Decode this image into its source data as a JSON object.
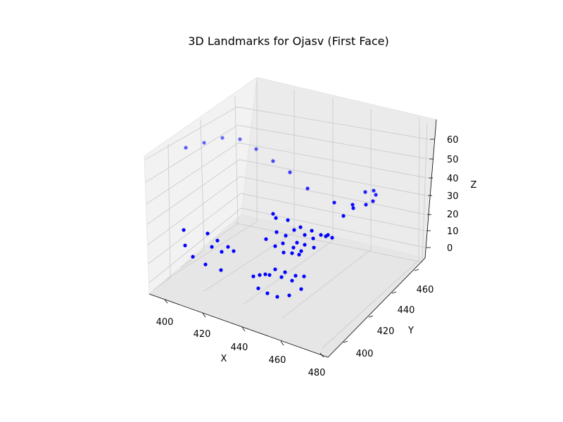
{
  "chart_data": {
    "type": "scatter",
    "projection": "3d",
    "title": "3D Landmarks for Ojasv (First Face)",
    "xlabel": "X",
    "ylabel": "Y",
    "zlabel": "Z",
    "xticks": [
      "400",
      "420",
      "440",
      "460",
      "480"
    ],
    "yticks": [
      "400",
      "420",
      "440",
      "460"
    ],
    "zticks": [
      "0",
      "10",
      "20",
      "30",
      "40",
      "50",
      "60"
    ],
    "grid": true,
    "marker_color": "#0000ff",
    "points": [
      [
        264,
        210
      ],
      [
        290,
        203
      ],
      [
        316,
        196
      ],
      [
        341,
        198
      ],
      [
        364,
        212
      ],
      [
        388,
        229
      ],
      [
        412,
        245
      ],
      [
        437,
        268
      ],
      [
        475,
        288
      ],
      [
        502,
        296
      ],
      [
        520,
        291
      ],
      [
        530,
        286
      ],
      [
        501,
        291
      ],
      [
        488,
        307
      ],
      [
        519,
        273
      ],
      [
        534,
        277
      ],
      [
        531,
        271
      ],
      [
        261,
        327
      ],
      [
        263,
        349
      ],
      [
        274,
        365
      ],
      [
        292,
        376
      ],
      [
        314,
        384
      ],
      [
        295,
        332
      ],
      [
        309,
        342
      ],
      [
        301,
        351
      ],
      [
        315,
        358
      ],
      [
        324,
        351
      ],
      [
        332,
        357
      ],
      [
        388,
        304
      ],
      [
        392,
        310
      ],
      [
        409,
        313
      ],
      [
        393,
        330
      ],
      [
        378,
        340
      ],
      [
        391,
        350
      ],
      [
        402,
        346
      ],
      [
        406,
        335
      ],
      [
        418,
        327
      ],
      [
        427,
        323
      ],
      [
        433,
        334
      ],
      [
        443,
        328
      ],
      [
        445,
        339
      ],
      [
        456,
        334
      ],
      [
        463,
        336
      ],
      [
        466,
        334
      ],
      [
        472,
        338
      ],
      [
        403,
        359
      ],
      [
        415,
        360
      ],
      [
        417,
        352
      ],
      [
        422,
        345
      ],
      [
        428,
        357
      ],
      [
        425,
        362
      ],
      [
        433,
        348
      ],
      [
        446,
        352
      ],
      [
        360,
        393
      ],
      [
        369,
        391
      ],
      [
        377,
        390
      ],
      [
        383,
        391
      ],
      [
        391,
        383
      ],
      [
        400,
        394
      ],
      [
        405,
        387
      ],
      [
        415,
        399
      ],
      [
        420,
        392
      ],
      [
        432,
        393
      ],
      [
        367,
        410
      ],
      [
        380,
        417
      ],
      [
        394,
        422
      ],
      [
        411,
        420
      ],
      [
        428,
        411
      ]
    ]
  }
}
